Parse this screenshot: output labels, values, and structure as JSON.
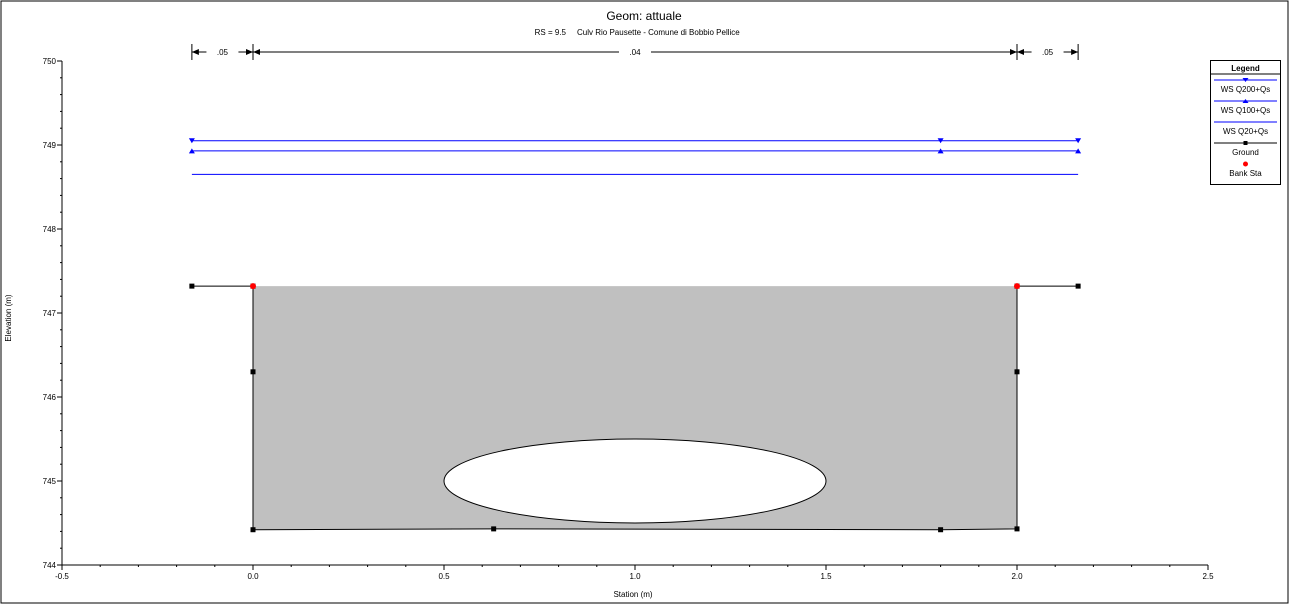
{
  "title": "Geom: attuale",
  "subtitle": {
    "rs": "RS = 9.5",
    "desc": "Culv Rio Pausette - Comune di Bobbio Pellice"
  },
  "chart_data": {
    "type": "line",
    "xlabel": "Station (m)",
    "ylabel": "Elevation (m)",
    "xlim": [
      -0.5,
      2.5
    ],
    "ylim": [
      744,
      750
    ],
    "xticks": [
      "-0.5",
      "0.0",
      "0.5",
      "1.0",
      "1.5",
      "2.0",
      "2.5"
    ],
    "yticks": [
      "744",
      "745",
      "746",
      "747",
      "748",
      "749",
      "750"
    ],
    "grid": false,
    "manning": [
      {
        "label": ".05",
        "from": -0.16,
        "to": 0.0
      },
      {
        "label": ".04",
        "from": 0.0,
        "to": 2.0
      },
      {
        "label": ".05",
        "from": 2.0,
        "to": 2.16
      }
    ],
    "series": [
      {
        "name": "WS Q200+Qs",
        "color": "#0000ff",
        "marker": "triangle-down",
        "x": [
          -0.16,
          1.8,
          2.16
        ],
        "y": [
          749.05,
          749.05,
          749.05
        ]
      },
      {
        "name": "WS Q100+Qs",
        "color": "#0000ff",
        "marker": "triangle-up",
        "x": [
          -0.16,
          1.8,
          2.16
        ],
        "y": [
          748.93,
          748.93,
          748.93
        ]
      },
      {
        "name": "WS Q20+Qs",
        "color": "#0000ff",
        "marker": "none",
        "x": [
          -0.16,
          2.16
        ],
        "y": [
          748.65,
          748.65
        ]
      },
      {
        "name": "Ground",
        "color": "#000000",
        "marker": "square",
        "x": [
          -0.16,
          0.0,
          0.0,
          0.0,
          0.63,
          1.8,
          2.0,
          2.0,
          2.0,
          2.16
        ],
        "y": [
          747.32,
          747.32,
          746.3,
          744.42,
          744.43,
          744.42,
          744.43,
          746.3,
          747.32,
          747.32
        ]
      },
      {
        "name": "Bank Sta",
        "color": "#ff0000",
        "marker": "circle",
        "x": [
          0.0,
          2.0
        ],
        "y": [
          747.32,
          747.32
        ]
      }
    ],
    "culvert_opening": {
      "center_x": 1.0,
      "center_y": 745.0,
      "half_width": 0.5,
      "top_y": 745.5,
      "bottom_y": 744.5
    },
    "legend": {
      "title": "Legend",
      "position": "top-right",
      "items": [
        "WS Q200+Qs",
        "WS Q100+Qs",
        "WS Q20+Qs",
        "Ground",
        "Bank Sta"
      ]
    }
  }
}
